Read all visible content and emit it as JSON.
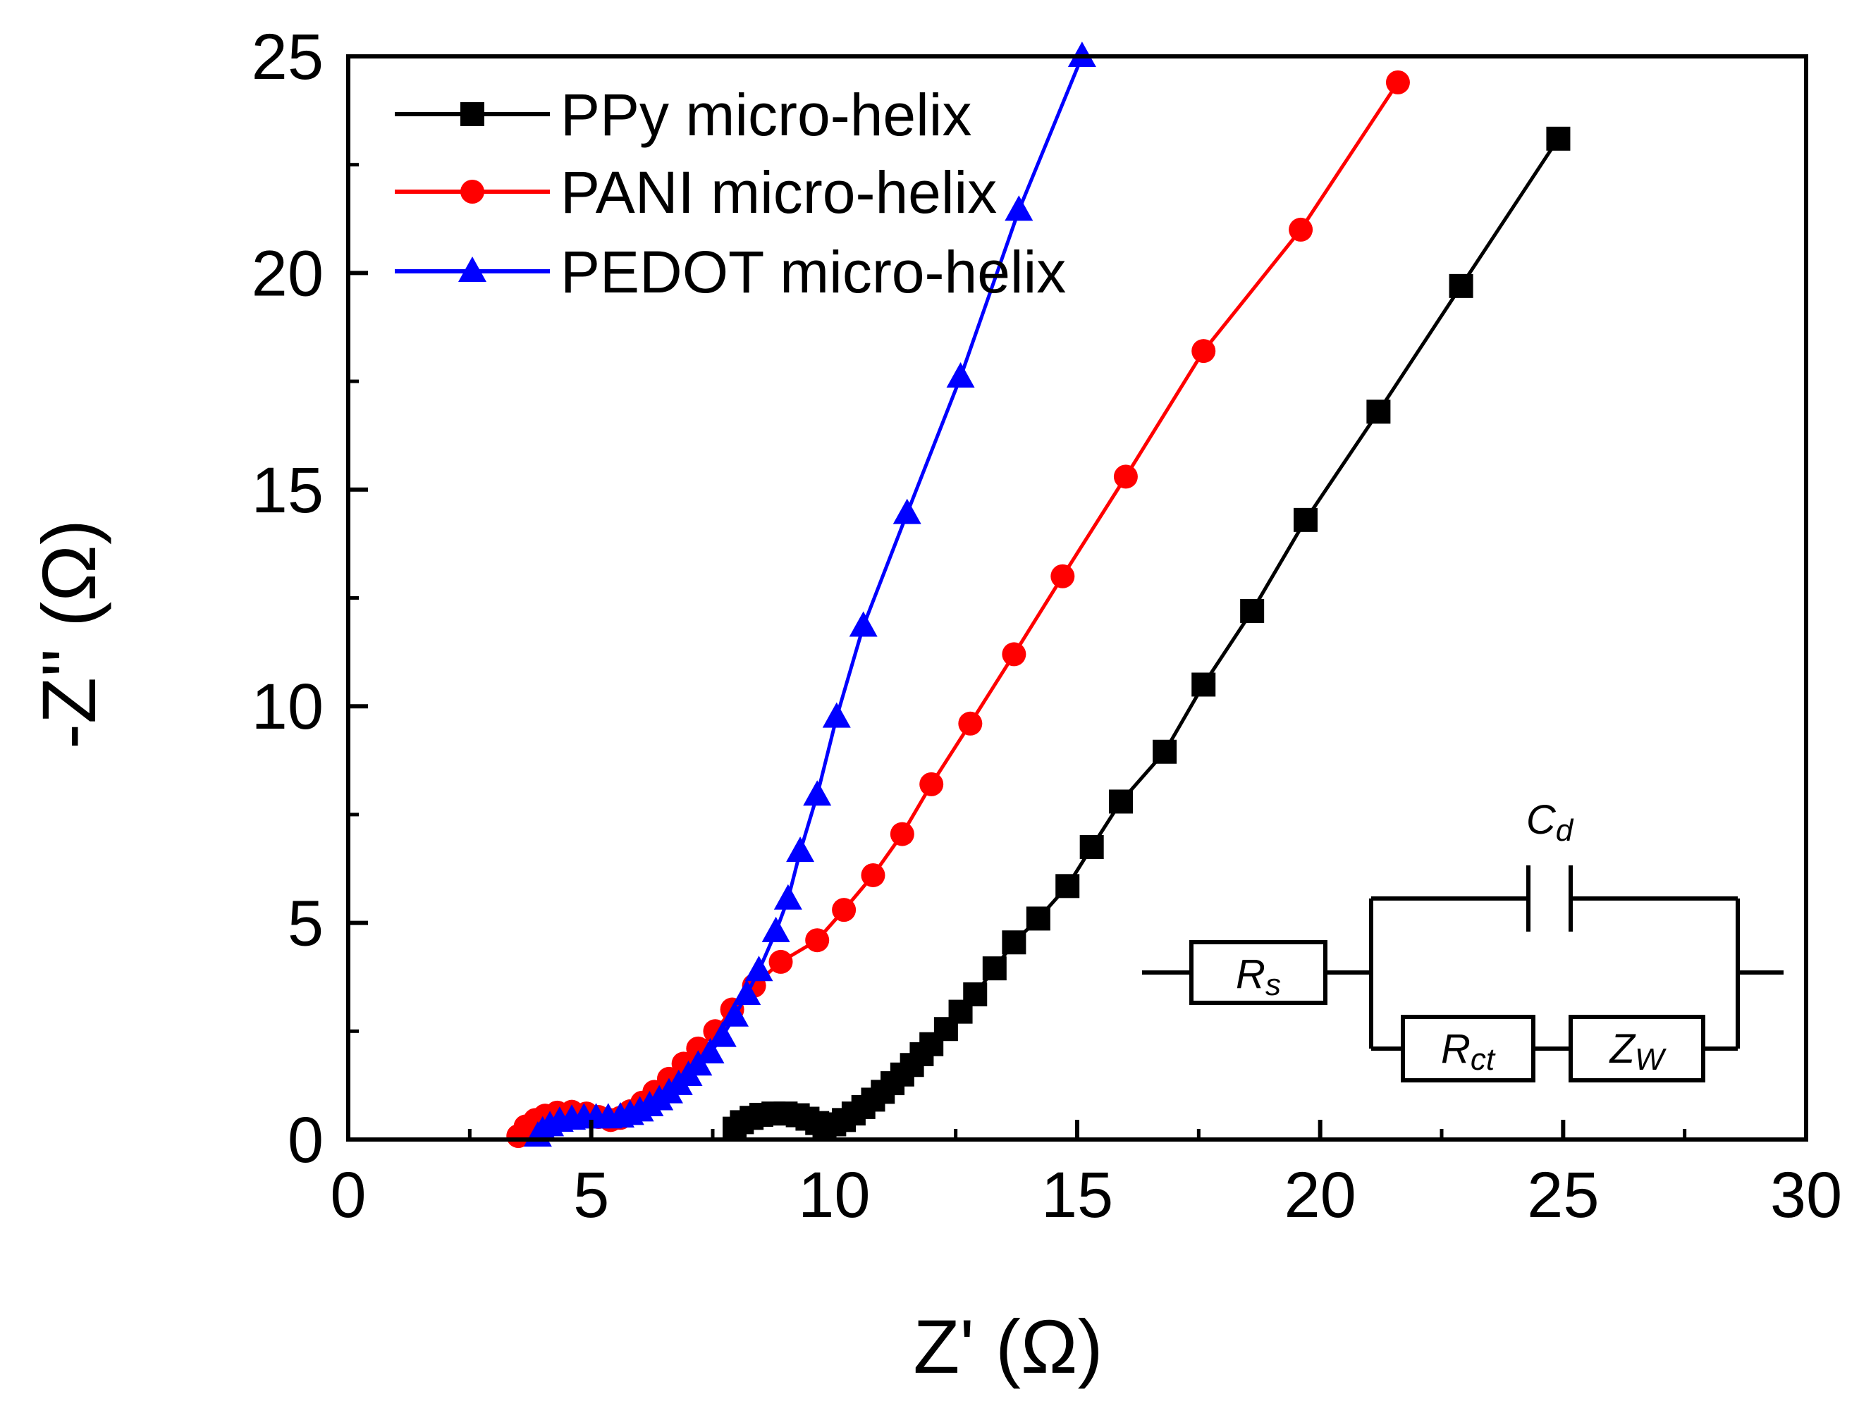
{
  "chart_data": {
    "type": "scatter",
    "title": "",
    "xlabel": "Z' (Ω)",
    "ylabel": "-Z'' (Ω)",
    "xlim": [
      0,
      30
    ],
    "ylim": [
      0,
      25
    ],
    "x_ticks": [
      "0",
      "5",
      "10",
      "15",
      "20",
      "25",
      "30"
    ],
    "y_ticks": [
      "0",
      "5",
      "10",
      "15",
      "20",
      "25"
    ],
    "legend_position": "top-left",
    "series": [
      {
        "name": "PPy micro-helix",
        "color": "#000000",
        "marker": "square",
        "points": [
          [
            7.95,
            0.25
          ],
          [
            8.1,
            0.4
          ],
          [
            8.3,
            0.5
          ],
          [
            8.5,
            0.57
          ],
          [
            8.75,
            0.6
          ],
          [
            9.0,
            0.6
          ],
          [
            9.25,
            0.56
          ],
          [
            9.45,
            0.48
          ],
          [
            9.65,
            0.38
          ],
          [
            9.8,
            0.3
          ],
          [
            10.0,
            0.35
          ],
          [
            10.2,
            0.45
          ],
          [
            10.4,
            0.6
          ],
          [
            10.6,
            0.75
          ],
          [
            10.8,
            0.92
          ],
          [
            11.0,
            1.1
          ],
          [
            11.2,
            1.3
          ],
          [
            11.4,
            1.5
          ],
          [
            11.6,
            1.72
          ],
          [
            11.8,
            1.97
          ],
          [
            12.0,
            2.2
          ],
          [
            12.3,
            2.55
          ],
          [
            12.6,
            2.95
          ],
          [
            12.9,
            3.35
          ],
          [
            13.3,
            3.95
          ],
          [
            13.7,
            4.55
          ],
          [
            14.2,
            5.1
          ],
          [
            14.8,
            5.85
          ],
          [
            15.3,
            6.75
          ],
          [
            15.9,
            7.8
          ],
          [
            16.8,
            8.95
          ],
          [
            17.6,
            10.5
          ],
          [
            18.6,
            12.2
          ],
          [
            19.7,
            14.3
          ],
          [
            21.2,
            16.8
          ],
          [
            22.9,
            19.7
          ],
          [
            24.9,
            23.1
          ]
        ]
      },
      {
        "name": "PANI micro-helix",
        "color": "#ff0000",
        "marker": "circle",
        "points": [
          [
            3.5,
            0.08
          ],
          [
            3.65,
            0.3
          ],
          [
            3.85,
            0.45
          ],
          [
            4.05,
            0.55
          ],
          [
            4.3,
            0.62
          ],
          [
            4.6,
            0.64
          ],
          [
            4.9,
            0.6
          ],
          [
            5.15,
            0.52
          ],
          [
            5.4,
            0.45
          ],
          [
            5.6,
            0.5
          ],
          [
            5.8,
            0.65
          ],
          [
            6.05,
            0.85
          ],
          [
            6.3,
            1.1
          ],
          [
            6.6,
            1.4
          ],
          [
            6.9,
            1.75
          ],
          [
            7.2,
            2.1
          ],
          [
            7.55,
            2.5
          ],
          [
            7.9,
            3.0
          ],
          [
            8.35,
            3.55
          ],
          [
            8.9,
            4.1
          ],
          [
            9.65,
            4.6
          ],
          [
            10.2,
            5.3
          ],
          [
            10.8,
            6.1
          ],
          [
            11.4,
            7.05
          ],
          [
            12.0,
            8.2
          ],
          [
            12.8,
            9.6
          ],
          [
            13.7,
            11.2
          ],
          [
            14.7,
            13.0
          ],
          [
            16.0,
            15.3
          ],
          [
            17.6,
            18.2
          ],
          [
            19.6,
            21.0
          ],
          [
            21.6,
            24.4
          ]
        ]
      },
      {
        "name": "PEDOT micro-helix",
        "color": "#0000ff",
        "marker": "triangle",
        "points": [
          [
            3.9,
            0.08
          ],
          [
            4.0,
            0.2
          ],
          [
            4.15,
            0.32
          ],
          [
            4.35,
            0.42
          ],
          [
            4.6,
            0.47
          ],
          [
            4.85,
            0.5
          ],
          [
            5.1,
            0.5
          ],
          [
            5.35,
            0.5
          ],
          [
            5.6,
            0.52
          ],
          [
            5.8,
            0.58
          ],
          [
            6.0,
            0.66
          ],
          [
            6.2,
            0.78
          ],
          [
            6.4,
            0.92
          ],
          [
            6.6,
            1.08
          ],
          [
            6.8,
            1.27
          ],
          [
            7.0,
            1.48
          ],
          [
            7.2,
            1.72
          ],
          [
            7.45,
            2.0
          ],
          [
            7.7,
            2.38
          ],
          [
            7.95,
            2.85
          ],
          [
            8.2,
            3.35
          ],
          [
            8.45,
            3.9
          ],
          [
            8.8,
            4.8
          ],
          [
            9.05,
            5.55
          ],
          [
            9.3,
            6.65
          ],
          [
            9.65,
            7.95
          ],
          [
            10.05,
            9.75
          ],
          [
            10.6,
            11.85
          ],
          [
            11.5,
            14.45
          ],
          [
            12.6,
            17.6
          ],
          [
            13.8,
            21.45
          ],
          [
            15.1,
            25.0
          ]
        ]
      }
    ],
    "inset_circuit": {
      "labels": {
        "rs": "R",
        "rs_sub": "s",
        "rct": "R",
        "rct_sub": "ct",
        "zw": "Z",
        "zw_sub": "W",
        "cd": "C",
        "cd_sub": "d"
      }
    }
  }
}
